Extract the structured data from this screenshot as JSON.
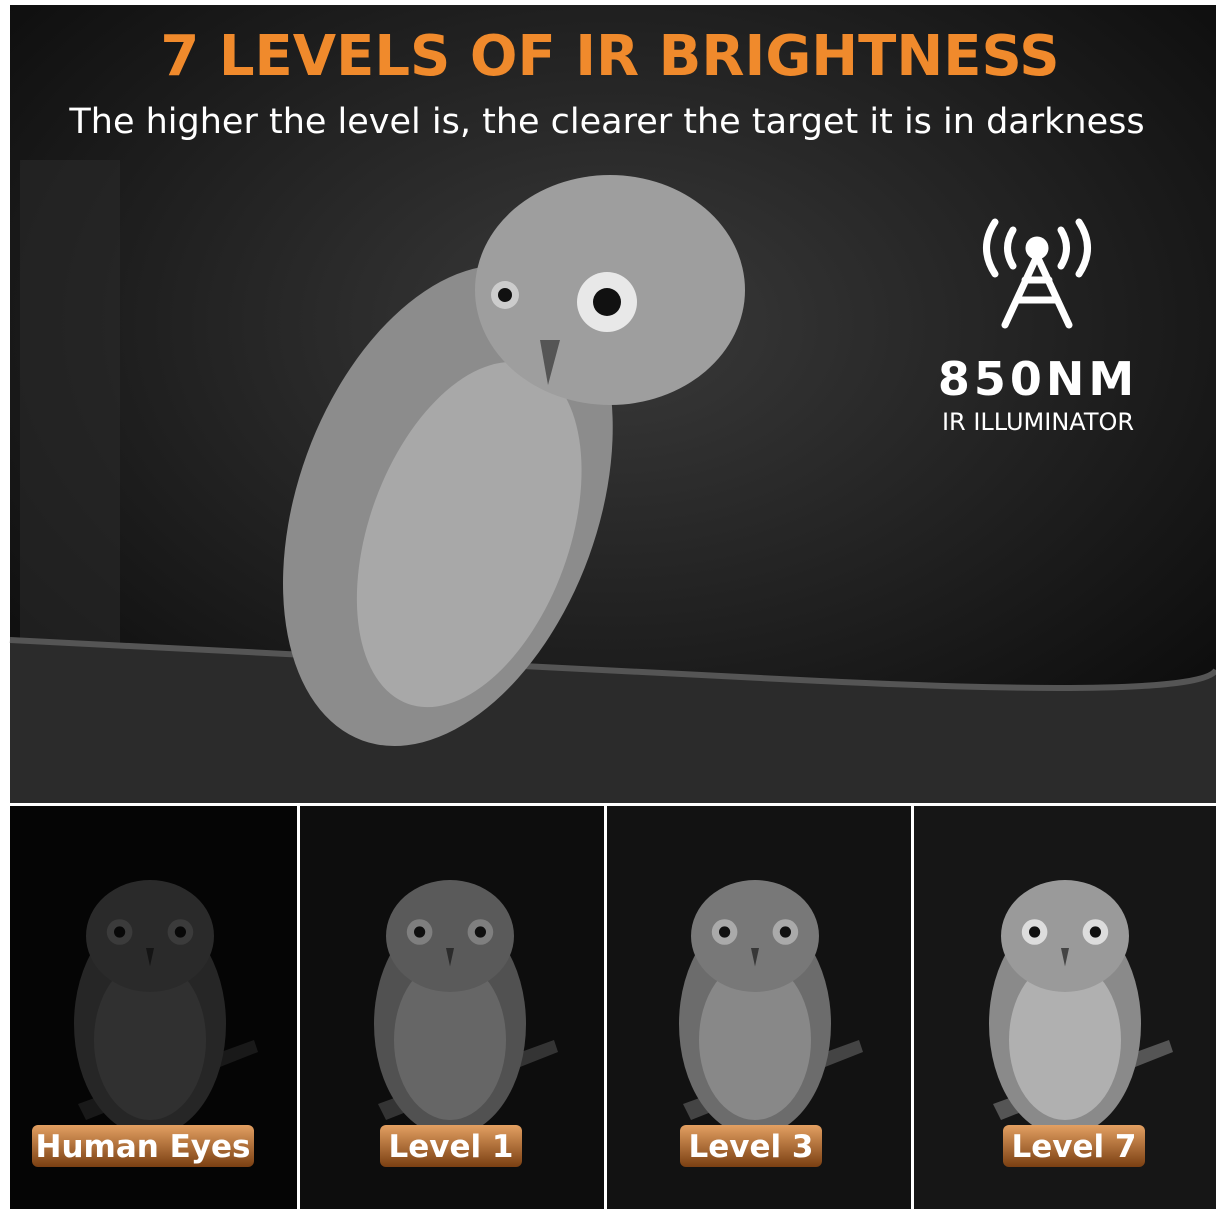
{
  "header": {
    "title": "7 LEVELS OF IR BRIGHTNESS",
    "subtitle": "The higher the level is, the clearer the target it is in darkness"
  },
  "badge": {
    "wavelength": "850NM",
    "caption": "IR ILLUMINATOR"
  },
  "panels": [
    {
      "label": "Human Eyes"
    },
    {
      "label": "Level 1"
    },
    {
      "label": "Level 3"
    },
    {
      "label": "Level 7"
    }
  ]
}
